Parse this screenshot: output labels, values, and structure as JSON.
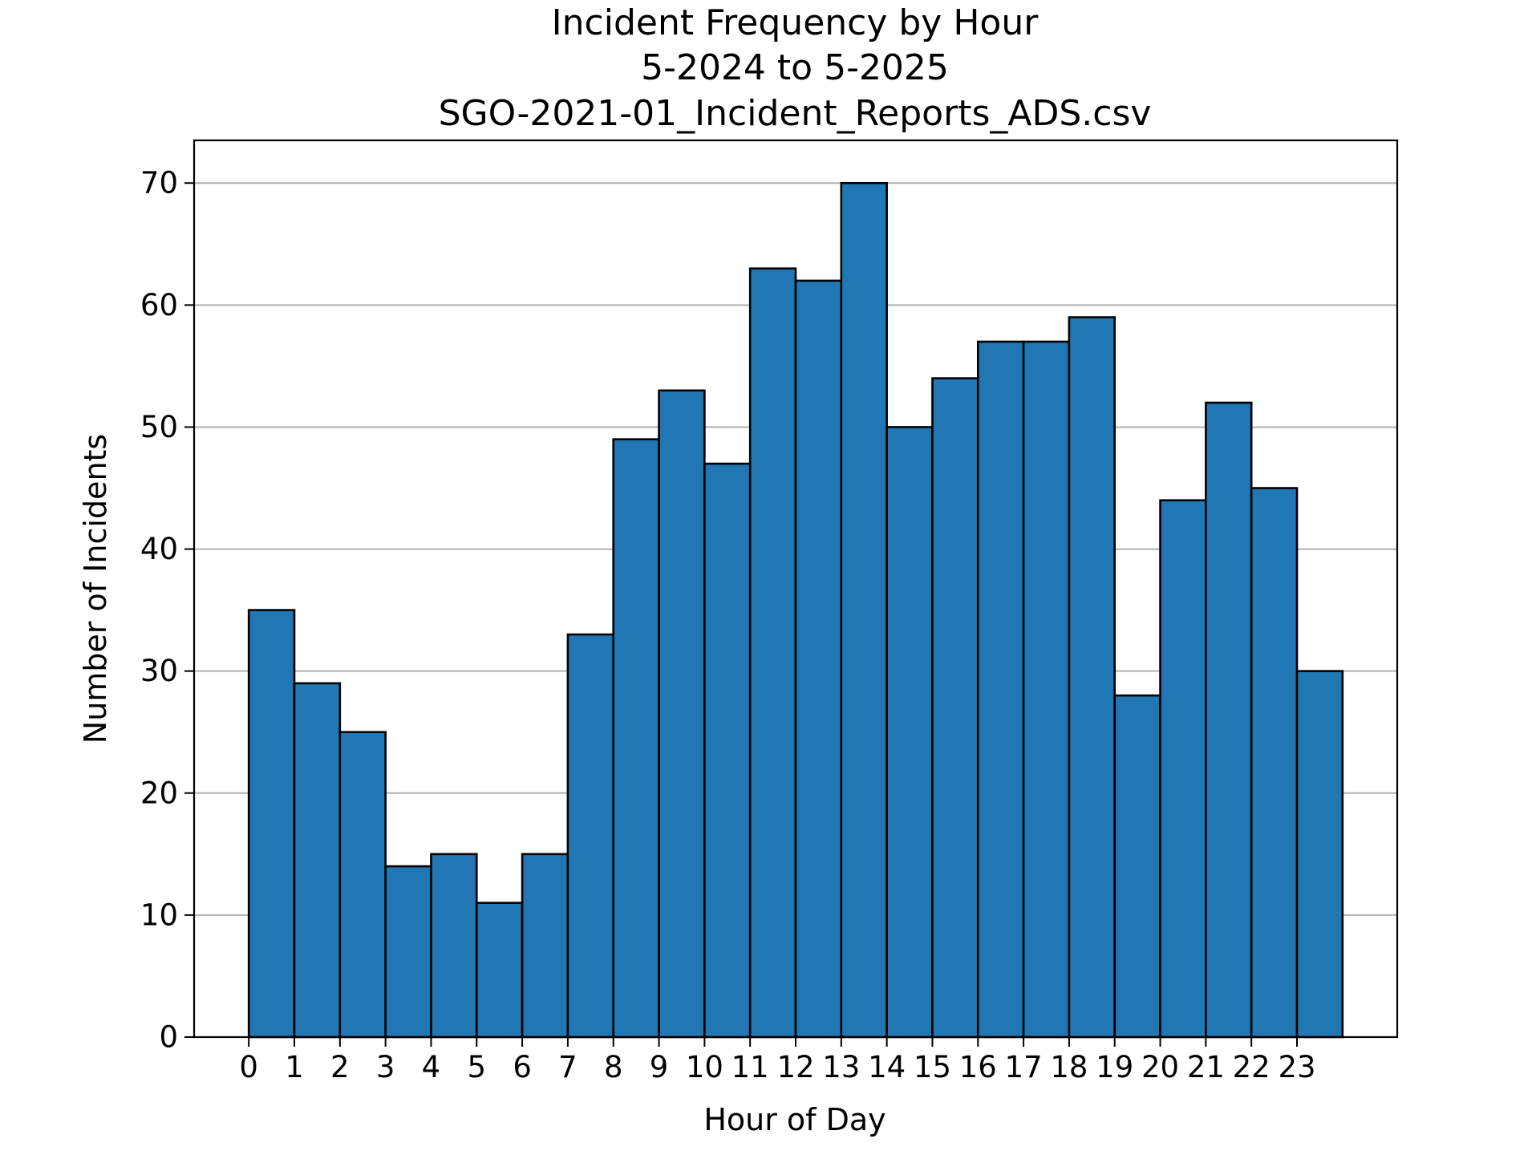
{
  "chart_data": {
    "type": "bar",
    "title_lines": [
      "Incident Frequency by Hour",
      "5-2024 to 5-2025",
      "SGO-2021-01_Incident_Reports_ADS.csv"
    ],
    "xlabel": "Hour of Day",
    "ylabel": "Number of Incidents",
    "categories": [
      "0",
      "1",
      "2",
      "3",
      "4",
      "5",
      "6",
      "7",
      "8",
      "9",
      "10",
      "11",
      "12",
      "13",
      "14",
      "15",
      "16",
      "17",
      "18",
      "19",
      "20",
      "21",
      "22",
      "23"
    ],
    "values": [
      35,
      29,
      25,
      14,
      15,
      11,
      15,
      33,
      49,
      53,
      47,
      63,
      62,
      70,
      50,
      54,
      57,
      57,
      59,
      28,
      44,
      52,
      45,
      30
    ],
    "xlim": [
      -1.2,
      25.2
    ],
    "ylim": [
      0,
      73.5
    ],
    "yticks": [
      0,
      10,
      20,
      30,
      40,
      50,
      60,
      70
    ],
    "grid": "y",
    "legend": "none",
    "colors": {
      "bar_fill": "#2077b4",
      "bar_edge": "#000000",
      "grid": "#b0b0b0",
      "axes": "#000000",
      "background": "#ffffff"
    }
  }
}
